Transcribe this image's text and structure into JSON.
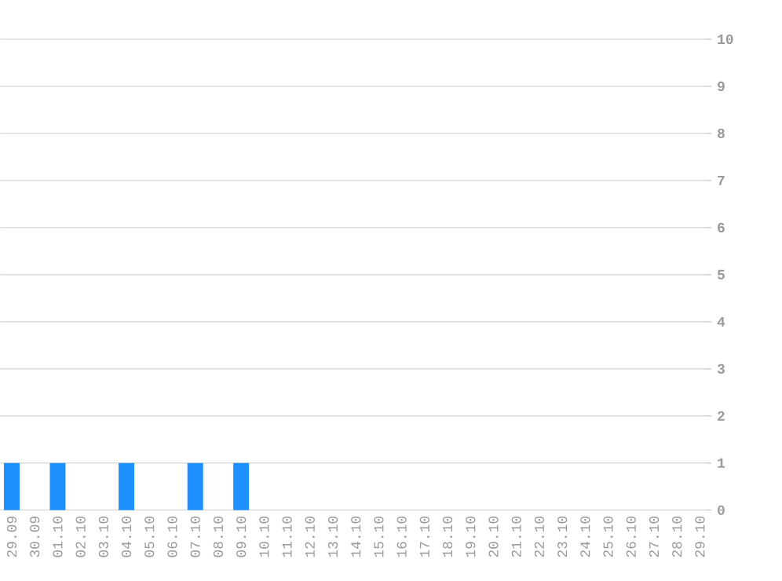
{
  "chart_data": {
    "type": "bar",
    "categories": [
      "29.09",
      "30.09",
      "01.10",
      "02.10",
      "03.10",
      "04.10",
      "05.10",
      "06.10",
      "07.10",
      "08.10",
      "09.10",
      "10.10",
      "11.10",
      "12.10",
      "13.10",
      "14.10",
      "15.10",
      "16.10",
      "17.10",
      "18.10",
      "19.10",
      "20.10",
      "21.10",
      "22.10",
      "23.10",
      "24.10",
      "25.10",
      "26.10",
      "27.10",
      "28.10",
      "29.10"
    ],
    "values": [
      1,
      0,
      1,
      0,
      0,
      1,
      0,
      0,
      1,
      0,
      1,
      0,
      0,
      0,
      0,
      0,
      0,
      0,
      0,
      0,
      0,
      0,
      0,
      0,
      0,
      0,
      0,
      0,
      0,
      0,
      0
    ],
    "color": "#1e90ff",
    "ylim": [
      0,
      10
    ],
    "yticks": [
      0,
      1,
      2,
      3,
      4,
      5,
      6,
      7,
      8,
      9,
      10
    ],
    "grid": "y"
  }
}
